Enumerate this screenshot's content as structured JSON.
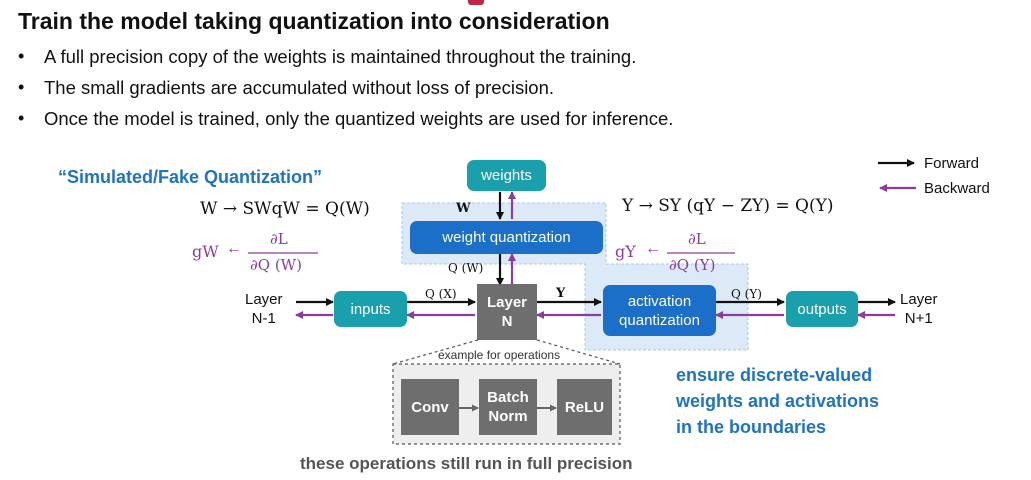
{
  "title": "Train the model taking quantization into consideration",
  "bullets": [
    "A full precision copy of the weights is maintained throughout the training.",
    "The small gradients are accumulated without loss of precision.",
    "Once the model is trained, only the quantized weights are used for inference."
  ],
  "bullet_symbol": "•",
  "colors": {
    "teal": "#1a9fac",
    "blue": "#1b6fc9",
    "gray_box": "#6e6e6e",
    "purple": "#8c3d9c",
    "accent_blue": "#1e73c5",
    "title_bar": "#c0254a"
  },
  "legend": {
    "forward": "Forward",
    "backward": "Backward"
  },
  "sim_label": "“Simulated/Fake Quantization”",
  "eq_w": "W → SWqW = Q(W)",
  "eq_y": "Y → SY (qY − ZY) = Q(Y)",
  "grad_w": {
    "lhs": "gW",
    "arrow": "←",
    "num": "∂L",
    "den": "∂Q (W)"
  },
  "grad_y": {
    "lhs": "gY",
    "arrow": "←",
    "num": "∂L",
    "den": "∂Q (Y)"
  },
  "boxes": {
    "weights": "weights",
    "weight_quantization": "weight quantization",
    "inputs": "inputs",
    "layer_line1": "Layer",
    "layer_line2": "N",
    "activation_line1": "activation",
    "activation_line2": "quantization",
    "outputs": "outputs",
    "conv": "Conv",
    "batch_line1": "Batch",
    "batch_line2": "Norm",
    "relu": "ReLU"
  },
  "edge_labels": {
    "w": "W",
    "qw": "Q (W)",
    "qx": "Q (X)",
    "y": "Y",
    "qy": "Q (Y)"
  },
  "layer_prev": {
    "line1": "Layer",
    "line2": "N-1"
  },
  "layer_next": {
    "line1": "Layer",
    "line2": "N+1"
  },
  "example_label": "example for operations",
  "discrete_note": [
    "ensure discrete-valued",
    "weights and activations",
    "in the boundaries"
  ],
  "full_precision_note": "these operations still run in full precision"
}
